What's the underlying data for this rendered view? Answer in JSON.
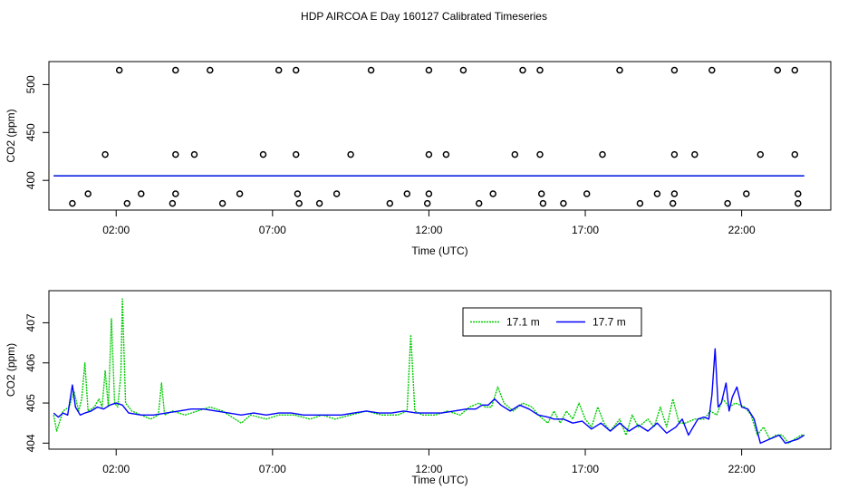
{
  "title": "HDP AIRCOA E  Day 160127  Calibrated Timeseries",
  "chart_data": [
    {
      "type": "scatter",
      "xlabel": "Time (UTC)",
      "ylabel": "CO2 (ppm)",
      "xlim": [
        -0.15,
        24.85
      ],
      "ylim": [
        369,
        524
      ],
      "xticks": [
        "02:00",
        "07:00",
        "12:00",
        "17:00",
        "22:00"
      ],
      "xtick_values": [
        2,
        7,
        12,
        17,
        22
      ],
      "yticks": [
        "400",
        "450",
        "500"
      ],
      "ytick_values": [
        400,
        450,
        500
      ],
      "points": [
        [
          2.1,
          515
        ],
        [
          3.9,
          515
        ],
        [
          5.0,
          515
        ],
        [
          7.2,
          515
        ],
        [
          7.75,
          515
        ],
        [
          10.15,
          515
        ],
        [
          12.0,
          515
        ],
        [
          13.1,
          515
        ],
        [
          15.0,
          515
        ],
        [
          15.55,
          515
        ],
        [
          18.1,
          515
        ],
        [
          19.85,
          515
        ],
        [
          21.05,
          515
        ],
        [
          23.15,
          515
        ],
        [
          23.7,
          515
        ],
        [
          1.65,
          427
        ],
        [
          3.9,
          427
        ],
        [
          4.5,
          427
        ],
        [
          6.7,
          427
        ],
        [
          7.75,
          427
        ],
        [
          9.5,
          427
        ],
        [
          12.0,
          427
        ],
        [
          12.55,
          427
        ],
        [
          14.75,
          427
        ],
        [
          15.55,
          427
        ],
        [
          17.55,
          427
        ],
        [
          19.85,
          427
        ],
        [
          20.5,
          427
        ],
        [
          22.6,
          427
        ],
        [
          23.7,
          427
        ],
        [
          1.1,
          386
        ],
        [
          2.8,
          386
        ],
        [
          3.9,
          386
        ],
        [
          5.95,
          386
        ],
        [
          7.8,
          386
        ],
        [
          9.05,
          386
        ],
        [
          11.3,
          386
        ],
        [
          12.0,
          386
        ],
        [
          14.05,
          386
        ],
        [
          15.6,
          386
        ],
        [
          17.05,
          386
        ],
        [
          19.3,
          386
        ],
        [
          19.85,
          386
        ],
        [
          22.15,
          386
        ],
        [
          23.8,
          386
        ],
        [
          0.6,
          376
        ],
        [
          2.35,
          376
        ],
        [
          3.8,
          376
        ],
        [
          5.4,
          376
        ],
        [
          7.85,
          376
        ],
        [
          8.5,
          376
        ],
        [
          10.75,
          376
        ],
        [
          11.95,
          376
        ],
        [
          13.6,
          376
        ],
        [
          15.65,
          376
        ],
        [
          16.3,
          376
        ],
        [
          18.75,
          376
        ],
        [
          19.8,
          376
        ],
        [
          21.55,
          376
        ],
        [
          23.8,
          376
        ]
      ],
      "series": [
        {
          "name": "17.1 m",
          "color": "#00cc00",
          "values": [
            [
              0,
              404.8
            ],
            [
              24,
              404.8
            ]
          ]
        },
        {
          "name": "17.7 m",
          "color": "#0000ff",
          "values": [
            [
              0,
              404.7
            ],
            [
              24,
              404.7
            ]
          ]
        }
      ]
    },
    {
      "type": "line",
      "xlabel": "Time (UTC)",
      "ylabel": "CO2 (ppm)",
      "xlim": [
        -0.15,
        24.85
      ],
      "ylim": [
        403.85,
        407.8
      ],
      "xticks": [
        "02:00",
        "07:00",
        "12:00",
        "17:00",
        "22:00"
      ],
      "xtick_values": [
        2,
        7,
        12,
        17,
        22
      ],
      "yticks": [
        "404",
        "405",
        "406",
        "407"
      ],
      "ytick_values": [
        404,
        405,
        406,
        407
      ],
      "legend": "top-center",
      "series": [
        {
          "name": "17.1 m",
          "color": "#00cc00",
          "style": "dotted",
          "values": [
            [
              0.0,
              404.7
            ],
            [
              0.1,
              404.3
            ],
            [
              0.3,
              404.8
            ],
            [
              0.5,
              404.9
            ],
            [
              0.65,
              405.3
            ],
            [
              0.8,
              404.8
            ],
            [
              0.9,
              405.1
            ],
            [
              1.0,
              406.0
            ],
            [
              1.1,
              404.8
            ],
            [
              1.3,
              404.9
            ],
            [
              1.45,
              405.1
            ],
            [
              1.55,
              404.9
            ],
            [
              1.65,
              405.8
            ],
            [
              1.75,
              404.9
            ],
            [
              1.85,
              407.1
            ],
            [
              1.95,
              405.0
            ],
            [
              2.05,
              404.9
            ],
            [
              2.15,
              405.7
            ],
            [
              2.2,
              407.6
            ],
            [
              2.3,
              405.0
            ],
            [
              2.5,
              404.8
            ],
            [
              2.8,
              404.7
            ],
            [
              3.1,
              404.6
            ],
            [
              3.35,
              404.7
            ],
            [
              3.45,
              405.5
            ],
            [
              3.55,
              404.7
            ],
            [
              3.8,
              404.8
            ],
            [
              4.2,
              404.7
            ],
            [
              4.6,
              404.8
            ],
            [
              5.0,
              404.9
            ],
            [
              5.4,
              404.8
            ],
            [
              5.8,
              404.6
            ],
            [
              6.0,
              404.5
            ],
            [
              6.3,
              404.7
            ],
            [
              6.8,
              404.6
            ],
            [
              7.2,
              404.7
            ],
            [
              7.7,
              404.7
            ],
            [
              8.2,
              404.6
            ],
            [
              8.6,
              404.7
            ],
            [
              9.0,
              404.6
            ],
            [
              9.5,
              404.7
            ],
            [
              10.0,
              404.8
            ],
            [
              10.5,
              404.7
            ],
            [
              11.0,
              404.7
            ],
            [
              11.3,
              404.8
            ],
            [
              11.42,
              406.7
            ],
            [
              11.55,
              404.8
            ],
            [
              11.8,
              404.7
            ],
            [
              12.2,
              404.7
            ],
            [
              12.6,
              404.8
            ],
            [
              13.0,
              404.7
            ],
            [
              13.3,
              404.9
            ],
            [
              13.6,
              405.0
            ],
            [
              13.8,
              404.9
            ],
            [
              14.0,
              404.9
            ],
            [
              14.2,
              405.4
            ],
            [
              14.4,
              405.0
            ],
            [
              14.7,
              404.8
            ],
            [
              15.0,
              405.0
            ],
            [
              15.3,
              404.9
            ],
            [
              15.5,
              404.7
            ],
            [
              15.8,
              404.5
            ],
            [
              16.0,
              404.8
            ],
            [
              16.2,
              404.5
            ],
            [
              16.4,
              404.8
            ],
            [
              16.6,
              404.6
            ],
            [
              16.8,
              405.0
            ],
            [
              17.0,
              404.6
            ],
            [
              17.2,
              404.4
            ],
            [
              17.4,
              404.9
            ],
            [
              17.6,
              404.5
            ],
            [
              17.8,
              404.3
            ],
            [
              18.1,
              404.6
            ],
            [
              18.3,
              404.2
            ],
            [
              18.5,
              404.7
            ],
            [
              18.7,
              404.4
            ],
            [
              19.0,
              404.6
            ],
            [
              19.2,
              404.4
            ],
            [
              19.4,
              404.9
            ],
            [
              19.6,
              404.4
            ],
            [
              19.8,
              405.1
            ],
            [
              20.0,
              404.5
            ],
            [
              20.2,
              404.5
            ],
            [
              20.5,
              404.6
            ],
            [
              20.8,
              404.6
            ],
            [
              21.0,
              404.8
            ],
            [
              21.2,
              404.7
            ],
            [
              21.4,
              405.1
            ],
            [
              21.6,
              404.9
            ],
            [
              21.8,
              405.0
            ],
            [
              22.1,
              404.9
            ],
            [
              22.3,
              404.7
            ],
            [
              22.5,
              404.2
            ],
            [
              22.7,
              404.4
            ],
            [
              22.9,
              404.1
            ],
            [
              23.1,
              404.2
            ],
            [
              23.3,
              404.2
            ],
            [
              23.5,
              404.0
            ],
            [
              23.7,
              404.1
            ],
            [
              23.9,
              404.2
            ],
            [
              24.0,
              404.2
            ]
          ]
        },
        {
          "name": "17.7 m",
          "color": "#0000ff",
          "style": "solid",
          "values": [
            [
              0.0,
              404.75
            ],
            [
              0.15,
              404.65
            ],
            [
              0.3,
              404.75
            ],
            [
              0.45,
              404.7
            ],
            [
              0.6,
              405.45
            ],
            [
              0.7,
              404.9
            ],
            [
              0.85,
              404.7
            ],
            [
              1.0,
              404.75
            ],
            [
              1.2,
              404.8
            ],
            [
              1.4,
              404.9
            ],
            [
              1.6,
              404.85
            ],
            [
              1.8,
              404.95
            ],
            [
              2.0,
              405.0
            ],
            [
              2.2,
              404.95
            ],
            [
              2.4,
              404.75
            ],
            [
              2.8,
              404.7
            ],
            [
              3.2,
              404.7
            ],
            [
              3.6,
              404.75
            ],
            [
              4.0,
              404.8
            ],
            [
              4.4,
              404.85
            ],
            [
              4.8,
              404.85
            ],
            [
              5.2,
              404.8
            ],
            [
              5.6,
              404.75
            ],
            [
              6.0,
              404.7
            ],
            [
              6.4,
              404.75
            ],
            [
              6.8,
              404.7
            ],
            [
              7.2,
              404.75
            ],
            [
              7.6,
              404.75
            ],
            [
              8.0,
              404.7
            ],
            [
              8.4,
              404.7
            ],
            [
              8.8,
              404.7
            ],
            [
              9.2,
              404.7
            ],
            [
              9.6,
              404.75
            ],
            [
              10.0,
              404.8
            ],
            [
              10.4,
              404.75
            ],
            [
              10.8,
              404.75
            ],
            [
              11.2,
              404.8
            ],
            [
              11.6,
              404.75
            ],
            [
              12.0,
              404.75
            ],
            [
              12.4,
              404.75
            ],
            [
              12.8,
              404.8
            ],
            [
              13.2,
              404.85
            ],
            [
              13.5,
              404.85
            ],
            [
              13.7,
              404.95
            ],
            [
              13.9,
              404.95
            ],
            [
              14.1,
              405.1
            ],
            [
              14.3,
              404.95
            ],
            [
              14.6,
              404.8
            ],
            [
              14.9,
              404.95
            ],
            [
              15.2,
              404.85
            ],
            [
              15.5,
              404.7
            ],
            [
              15.8,
              404.65
            ],
            [
              16.0,
              404.6
            ],
            [
              16.3,
              404.6
            ],
            [
              16.6,
              404.5
            ],
            [
              16.9,
              404.55
            ],
            [
              17.2,
              404.35
            ],
            [
              17.5,
              404.5
            ],
            [
              17.8,
              404.3
            ],
            [
              18.1,
              404.5
            ],
            [
              18.4,
              404.3
            ],
            [
              18.7,
              404.45
            ],
            [
              19.0,
              404.3
            ],
            [
              19.3,
              404.5
            ],
            [
              19.6,
              404.25
            ],
            [
              19.9,
              404.4
            ],
            [
              20.1,
              404.6
            ],
            [
              20.3,
              404.2
            ],
            [
              20.6,
              404.6
            ],
            [
              20.8,
              404.65
            ],
            [
              20.95,
              404.6
            ],
            [
              21.05,
              405.2
            ],
            [
              21.15,
              406.35
            ],
            [
              21.25,
              404.9
            ],
            [
              21.35,
              405.0
            ],
            [
              21.5,
              405.5
            ],
            [
              21.6,
              404.8
            ],
            [
              21.7,
              405.15
            ],
            [
              21.85,
              405.4
            ],
            [
              22.0,
              404.9
            ],
            [
              22.2,
              404.85
            ],
            [
              22.4,
              404.6
            ],
            [
              22.6,
              404.0
            ],
            [
              22.9,
              404.1
            ],
            [
              23.2,
              404.2
            ],
            [
              23.4,
              404.0
            ],
            [
              23.6,
              404.05
            ],
            [
              23.8,
              404.1
            ],
            [
              24.0,
              404.2
            ]
          ]
        }
      ]
    }
  ]
}
